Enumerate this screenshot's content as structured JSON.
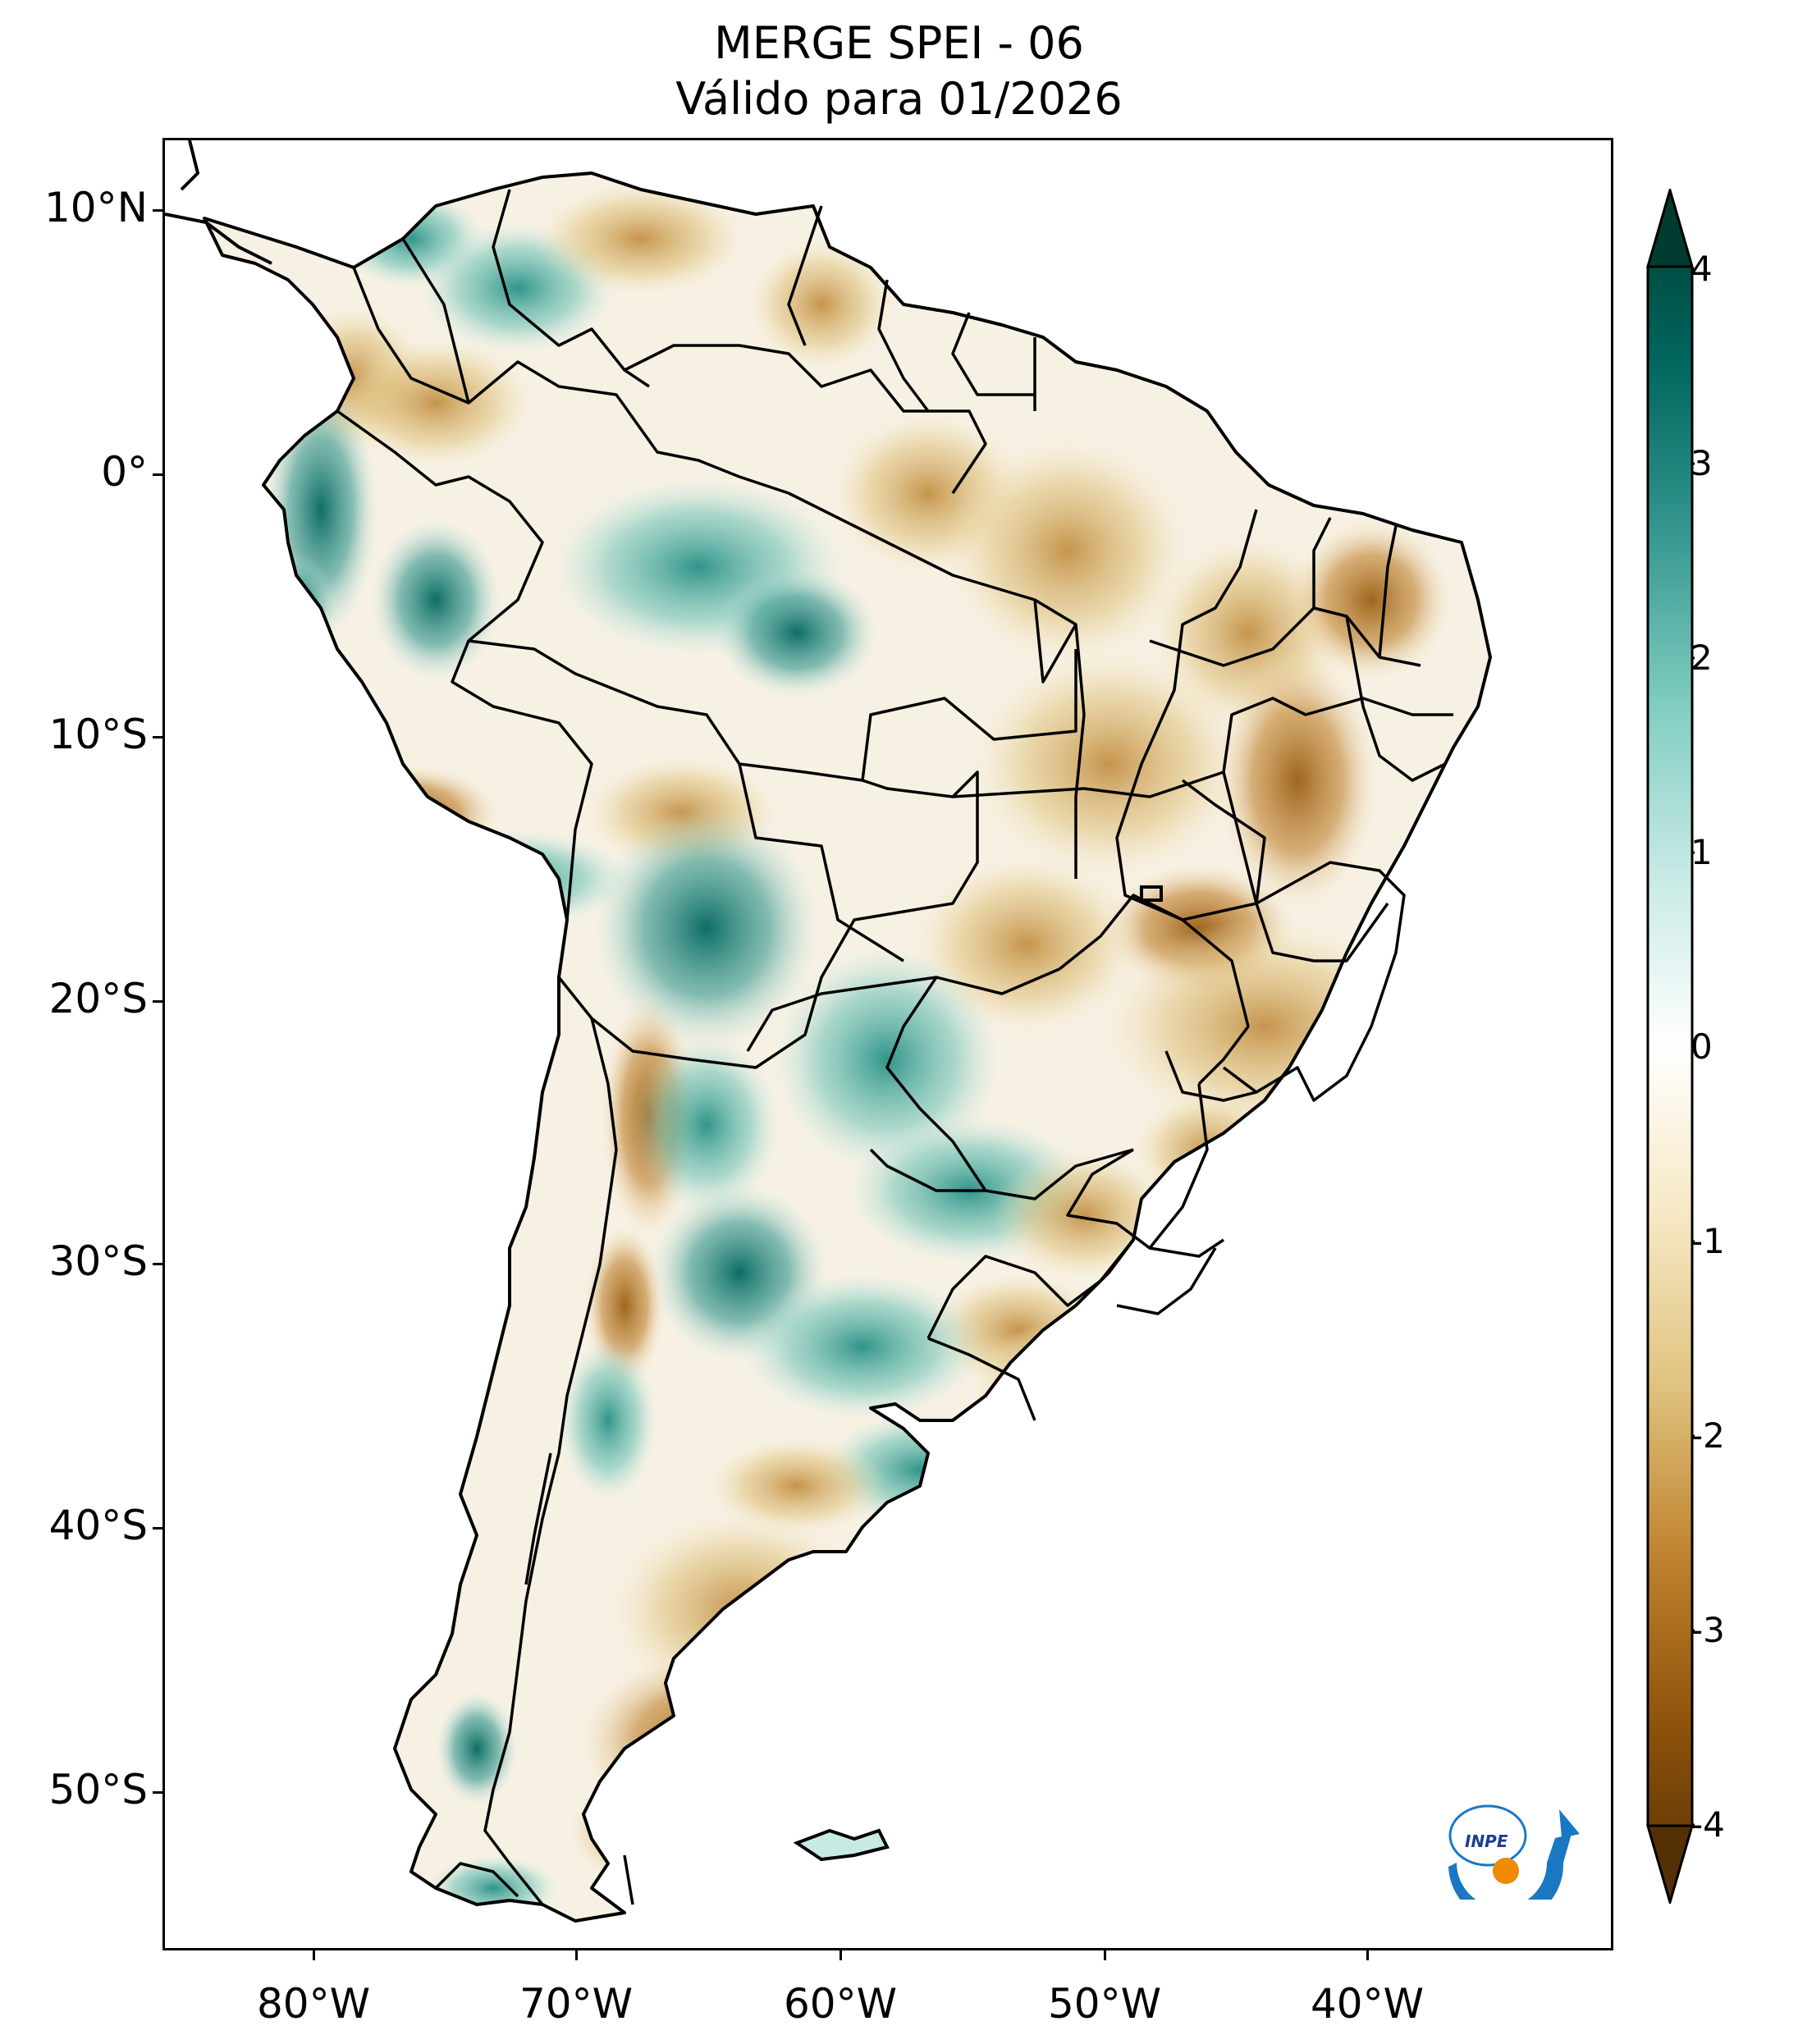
{
  "title": {
    "line1": "MERGE   SPEI - 06",
    "line2": "Válido para 01/2026"
  },
  "axes": {
    "lat_labels": [
      "10°N",
      "0°",
      "10°S",
      "20°S",
      "30°S",
      "40°S",
      "50°S"
    ],
    "lon_labels": [
      "80°W",
      "70°W",
      "60°W",
      "50°W",
      "40°W"
    ]
  },
  "colorbar": {
    "ticks": [
      "4",
      "3",
      "2",
      "1",
      "0",
      "-1",
      "-2",
      "-3",
      "-4"
    ],
    "range": [
      -4,
      4
    ],
    "colormap": "BrBG",
    "colors": [
      "#543005",
      "#8c510a",
      "#bf812d",
      "#dfc27d",
      "#f6e8c3",
      "#ffffff",
      "#c7eae5",
      "#80cdc1",
      "#35978f",
      "#01665e",
      "#003c30"
    ]
  },
  "logo": {
    "text": "INPE",
    "icon": "inpe-logo-icon"
  }
}
